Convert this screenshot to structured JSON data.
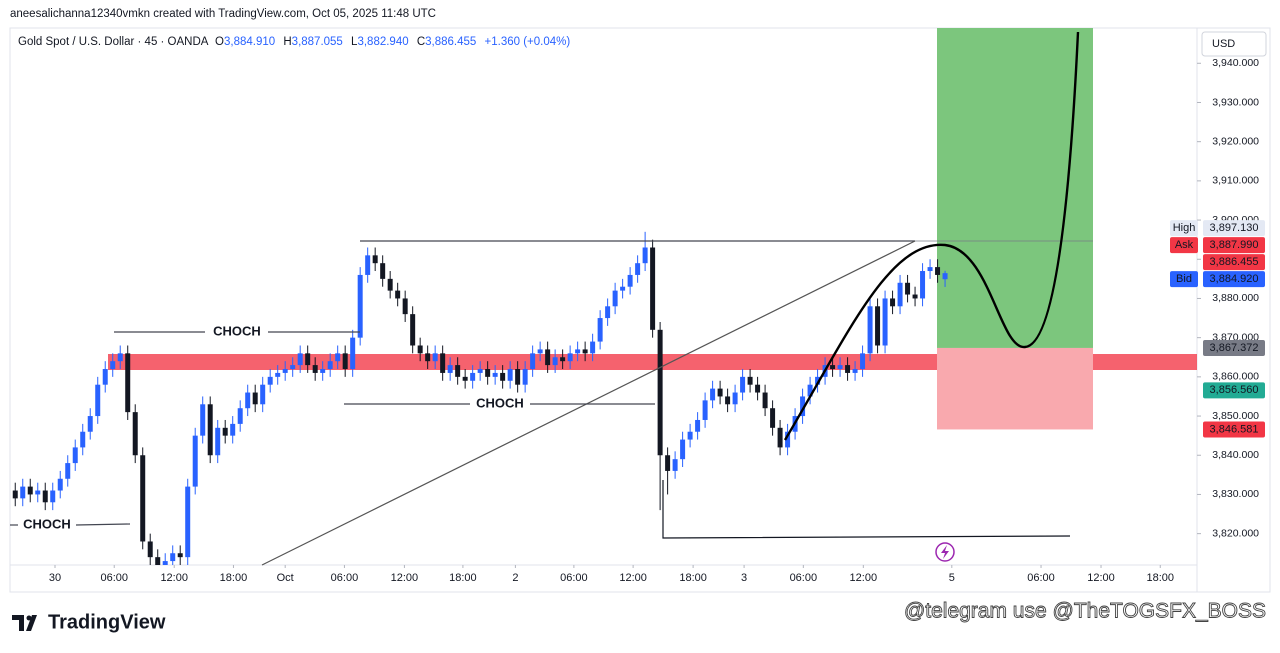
{
  "header": {
    "credit": "aneesalichanna12340vmkn created with TradingView.com, Oct 05, 2025 11:48 UTC",
    "symbol": "Gold Spot / U.S. Dollar · 45 · OANDA",
    "ohlc": [
      {
        "key": "O",
        "value": "3,884.910"
      },
      {
        "key": "H",
        "value": "3,887.055"
      },
      {
        "key": "L",
        "value": "3,882.940"
      },
      {
        "key": "C",
        "value": "3,886.455"
      }
    ],
    "change": "+1.360 (+0.04%)"
  },
  "chart_data": {
    "type": "candlestick",
    "currency": "USD",
    "up_color": "#2962ff",
    "down_color": "#131722",
    "open": [
      3831,
      3829,
      3832,
      3830,
      3831,
      3828,
      3831,
      3834,
      3838,
      3842,
      3846,
      3850,
      3858,
      3862,
      3864,
      3866,
      3851,
      3840,
      3818,
      3814,
      3812,
      3813,
      3815,
      3814,
      3832,
      3845,
      3853,
      3840,
      3847,
      3845,
      3848,
      3852,
      3856,
      3853,
      3858,
      3860,
      3861,
      3862,
      3863,
      3866,
      3863,
      3861,
      3862,
      3864,
      3866,
      3862,
      3870,
      3886,
      3891,
      3889,
      3885,
      3882,
      3880,
      3876,
      3868,
      3866,
      3864,
      3866,
      3861,
      3863,
      3860,
      3859,
      3861,
      3862,
      3860,
      3861,
      3859,
      3862,
      3858,
      3862,
      3866,
      3867,
      3863,
      3865,
      3864,
      3866,
      3867,
      3866,
      3869,
      3875,
      3878,
      3882,
      3883,
      3886,
      3889,
      3893,
      3872,
      3840,
      3836,
      3839,
      3844,
      3846,
      3849,
      3854,
      3857,
      3855,
      3853,
      3856,
      3860,
      3858,
      3856,
      3852,
      3847,
      3842,
      3846,
      3850,
      3855,
      3858,
      3860,
      3863,
      3862,
      3863,
      3861,
      3862,
      3866,
      3878,
      3868,
      3880,
      3878,
      3884,
      3881,
      3880,
      3887,
      3888,
      3884.91
    ],
    "high": [
      3833,
      3834,
      3834,
      3833,
      3833,
      3833,
      3836,
      3840,
      3844,
      3848,
      3852,
      3860,
      3864,
      3866,
      3868,
      3868,
      3853,
      3842,
      3820,
      3816,
      3815,
      3817,
      3817,
      3834,
      3847,
      3855,
      3855,
      3849,
      3849,
      3850,
      3854,
      3858,
      3858,
      3860,
      3862,
      3863,
      3864,
      3865,
      3868,
      3868,
      3865,
      3864,
      3866,
      3868,
      3868,
      3872,
      3888,
      3893,
      3893,
      3891,
      3887,
      3884,
      3882,
      3878,
      3870,
      3868,
      3868,
      3868,
      3865,
      3865,
      3862,
      3863,
      3864,
      3864,
      3863,
      3863,
      3864,
      3864,
      3864,
      3868,
      3869,
      3869,
      3867,
      3867,
      3868,
      3869,
      3869,
      3871,
      3877,
      3880,
      3884,
      3885,
      3888,
      3891,
      3897,
      3895,
      3874,
      3842,
      3841,
      3846,
      3848,
      3851,
      3856,
      3859,
      3859,
      3857,
      3858,
      3862,
      3862,
      3860,
      3858,
      3854,
      3849,
      3848,
      3852,
      3857,
      3860,
      3862,
      3865,
      3865,
      3865,
      3865,
      3864,
      3868,
      3880,
      3880,
      3882,
      3882,
      3886,
      3886,
      3883,
      3889,
      3890,
      3890,
      3887.055
    ],
    "low": [
      3827,
      3827,
      3828,
      3828,
      3826,
      3826,
      3829,
      3832,
      3836,
      3840,
      3844,
      3848,
      3856,
      3860,
      3862,
      3849,
      3838,
      3816,
      3812,
      3810,
      3810,
      3811,
      3812,
      3812,
      3830,
      3843,
      3838,
      3838,
      3843,
      3843,
      3846,
      3850,
      3851,
      3851,
      3856,
      3858,
      3859,
      3860,
      3861,
      3861,
      3859,
      3859,
      3860,
      3862,
      3860,
      3860,
      3868,
      3884,
      3887,
      3883,
      3880,
      3878,
      3874,
      3866,
      3864,
      3862,
      3862,
      3859,
      3859,
      3858,
      3857,
      3857,
      3859,
      3858,
      3858,
      3857,
      3857,
      3856,
      3856,
      3860,
      3864,
      3861,
      3861,
      3862,
      3862,
      3864,
      3864,
      3864,
      3867,
      3873,
      3876,
      3880,
      3881,
      3884,
      3887,
      3870,
      3826,
      3830,
      3834,
      3837,
      3842,
      3844,
      3847,
      3852,
      3853,
      3851,
      3851,
      3854,
      3856,
      3854,
      3850,
      3845,
      3840,
      3840,
      3844,
      3848,
      3853,
      3856,
      3858,
      3860,
      3860,
      3859,
      3859,
      3860,
      3864,
      3866,
      3866,
      3876,
      3876,
      3879,
      3878,
      3878,
      3885,
      3884,
      3882.94
    ],
    "close": [
      3829,
      3832,
      3830,
      3831,
      3828,
      3831,
      3834,
      3838,
      3842,
      3846,
      3850,
      3858,
      3862,
      3864,
      3866,
      3851,
      3840,
      3818,
      3814,
      3812,
      3813,
      3815,
      3814,
      3832,
      3845,
      3853,
      3840,
      3847,
      3845,
      3848,
      3852,
      3856,
      3853,
      3858,
      3860,
      3861,
      3862,
      3863,
      3866,
      3863,
      3861,
      3862,
      3864,
      3866,
      3862,
      3870,
      3886,
      3891,
      3889,
      3885,
      3882,
      3880,
      3876,
      3868,
      3866,
      3864,
      3866,
      3861,
      3863,
      3860,
      3859,
      3861,
      3862,
      3860,
      3861,
      3859,
      3862,
      3858,
      3862,
      3866,
      3867,
      3863,
      3865,
      3864,
      3866,
      3867,
      3866,
      3869,
      3875,
      3878,
      3882,
      3883,
      3886,
      3889,
      3893,
      3872,
      3840,
      3836,
      3839,
      3844,
      3846,
      3849,
      3854,
      3857,
      3855,
      3853,
      3856,
      3860,
      3858,
      3856,
      3852,
      3847,
      3842,
      3846,
      3850,
      3855,
      3858,
      3860,
      3863,
      3862,
      3863,
      3861,
      3862,
      3866,
      3878,
      3868,
      3880,
      3878,
      3884,
      3881,
      3880,
      3887,
      3888,
      3886,
      3886.455
    ],
    "xlim": [
      -0.7,
      157.6
    ],
    "ylim": [
      3812,
      3949
    ],
    "xticks": [
      {
        "value": 5.3,
        "label": "30"
      },
      {
        "value": 13.2,
        "label": "06:00"
      },
      {
        "value": 21.2,
        "label": "12:00"
      },
      {
        "value": 29.1,
        "label": "18:00"
      },
      {
        "value": 36,
        "label": "Oct"
      },
      {
        "value": 43.9,
        "label": "06:00"
      },
      {
        "value": 51.9,
        "label": "12:00"
      },
      {
        "value": 59.7,
        "label": "18:00"
      },
      {
        "value": 66.7,
        "label": "2"
      },
      {
        "value": 74.5,
        "label": "06:00"
      },
      {
        "value": 82.4,
        "label": "12:00"
      },
      {
        "value": 90.4,
        "label": "18:00"
      },
      {
        "value": 97.2,
        "label": "3"
      },
      {
        "value": 105.1,
        "label": "06:00"
      },
      {
        "value": 113.1,
        "label": "12:00"
      },
      {
        "value": 124.9,
        "label": "5"
      },
      {
        "value": 136.8,
        "label": "06:00"
      },
      {
        "value": 144.8,
        "label": "12:00"
      },
      {
        "value": 152.7,
        "label": "18:00"
      }
    ],
    "yticks": [
      {
        "value": 3820,
        "label": "3,820.000"
      },
      {
        "value": 3830,
        "label": "3,830.000"
      },
      {
        "value": 3840,
        "label": "3,840.000"
      },
      {
        "value": 3850,
        "label": "3,850.000"
      },
      {
        "value": 3860,
        "label": "3,860.000"
      },
      {
        "value": 3870,
        "label": "3,870.000"
      },
      {
        "value": 3880,
        "label": "3,880.000"
      },
      {
        "value": 3890,
        "label": "3,890.000"
      },
      {
        "value": 3900,
        "label": "3,900.000"
      },
      {
        "value": 3910,
        "label": "3,910.000"
      },
      {
        "value": 3920,
        "label": "3,920.000"
      },
      {
        "value": 3930,
        "label": "3,930.000"
      },
      {
        "value": 3940,
        "label": "3,940.000"
      }
    ],
    "price_labels": [
      {
        "tag": "High",
        "value": 3897.13,
        "label": "3,897.130",
        "color": "#e4e9f4"
      },
      {
        "tag": "Ask",
        "value": 3887.99,
        "label": "3,887.990",
        "color": "#f23645"
      },
      {
        "value": 3886.455,
        "label": "3,886.455",
        "color": "#f23645"
      },
      {
        "tag": "Bid",
        "value": 3884.92,
        "label": "3,884.920",
        "color": "#2962ff"
      },
      {
        "value": 3867.372,
        "label": "3,867.372",
        "color": "#787b86"
      },
      {
        "value": 3856.56,
        "label": "3,856.560",
        "color": "#22ab94"
      },
      {
        "value": 3846.581,
        "label": "3,846.581",
        "color": "#f23645"
      }
    ],
    "annotations": [
      "CHOCH",
      "CHOCH",
      "CHOCH"
    ]
  },
  "footer": {
    "logo": "TradingView",
    "watermark": "@telegram use @TheTOGSFX_BOSS"
  }
}
